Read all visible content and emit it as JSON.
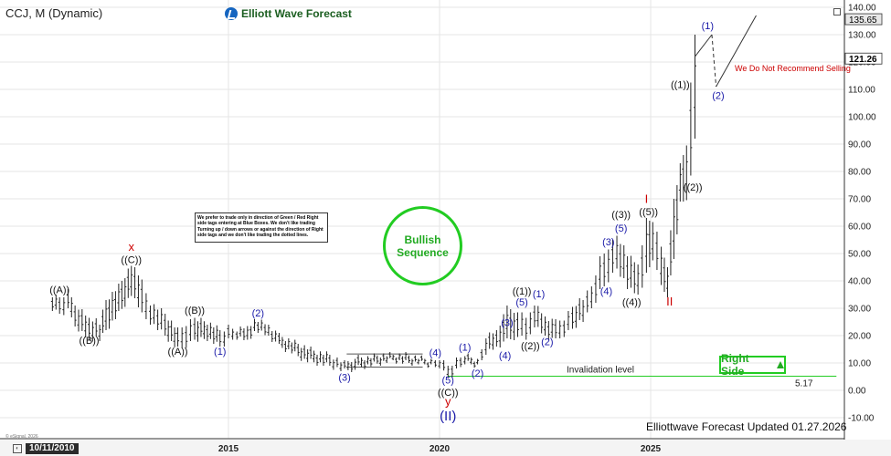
{
  "header": {
    "ticker": "CCJ, M (Dynamic)",
    "brand": "Elliott Wave Forecast"
  },
  "note": "We prefer to trade only in direction of Green / Red Right side tags entering at Blue Boxes. We don't like trading Turning up / down arrows or against the direction of Right side tags and we don't like trading the dotted lines.",
  "bullish_label": "Bullish Sequence",
  "right_side_label": "Right Side",
  "updated": "Elliottwave Forecast Updated 01.27.2026",
  "copyright": "© eSignal, 2026",
  "date_badge": "10/11/2010",
  "colors": {
    "green": "#22cc22",
    "blue": "#1a1aa8",
    "red": "#cc0000",
    "grid": "#e6e6e6",
    "bar": "#222222"
  },
  "chart_data": {
    "type": "ohlc",
    "x_ticks": [
      "2015",
      "2020",
      "2025"
    ],
    "y_ticks": [
      -10,
      0,
      10,
      20,
      30,
      40,
      50,
      60,
      70,
      80,
      90,
      100,
      110,
      120,
      130,
      140
    ],
    "ylim": [
      -13,
      142
    ],
    "price_labels": [
      "135.65",
      "121.26"
    ],
    "price_label_values": [
      135.65,
      121.26
    ],
    "bars": [
      [
        2010.83,
        30,
        35
      ],
      [
        2011.0,
        28,
        34
      ],
      [
        2011.2,
        29,
        36
      ],
      [
        2011.45,
        22,
        30
      ],
      [
        2011.7,
        18,
        26
      ],
      [
        2011.95,
        19,
        25
      ],
      [
        2012.1,
        22,
        33
      ],
      [
        2012.4,
        28,
        38
      ],
      [
        2012.7,
        35,
        46
      ],
      [
        2012.95,
        28,
        40
      ],
      [
        2013.15,
        25,
        32
      ],
      [
        2013.5,
        20,
        28
      ],
      [
        2013.8,
        15,
        22
      ],
      [
        2014.0,
        16,
        24
      ],
      [
        2014.2,
        18,
        26
      ],
      [
        2014.5,
        19,
        25
      ],
      [
        2014.8,
        16,
        22
      ],
      [
        2015.0,
        18,
        23
      ],
      [
        2015.2,
        19,
        22
      ],
      [
        2015.45,
        18,
        23
      ],
      [
        2015.7,
        22,
        26
      ],
      [
        2015.95,
        20,
        24
      ],
      [
        2016.2,
        16,
        20
      ],
      [
        2016.5,
        14,
        18
      ],
      [
        2016.8,
        11,
        16
      ],
      [
        2017.1,
        10,
        14
      ],
      [
        2017.4,
        9,
        13
      ],
      [
        2017.75,
        7,
        10
      ],
      [
        2018.0,
        8,
        12
      ],
      [
        2018.3,
        9,
        12
      ],
      [
        2018.6,
        10,
        13
      ],
      [
        2018.9,
        11,
        13
      ],
      [
        2019.2,
        10,
        13
      ],
      [
        2019.5,
        10,
        12
      ],
      [
        2019.8,
        9,
        11
      ],
      [
        2020.0,
        9,
        12
      ],
      [
        2020.2,
        4.5,
        9
      ],
      [
        2020.4,
        7,
        11
      ],
      [
        2020.6,
        10,
        13
      ],
      [
        2020.9,
        9,
        11
      ],
      [
        2021.1,
        14,
        20
      ],
      [
        2021.35,
        16,
        22
      ],
      [
        2021.6,
        18,
        30
      ],
      [
        2021.85,
        20,
        29
      ],
      [
        2022.05,
        18,
        26
      ],
      [
        2022.25,
        24,
        32
      ],
      [
        2022.5,
        20,
        27
      ],
      [
        2022.75,
        18,
        25
      ],
      [
        2022.95,
        20,
        26
      ],
      [
        2023.15,
        22,
        30
      ],
      [
        2023.4,
        26,
        34
      ],
      [
        2023.6,
        30,
        38
      ],
      [
        2023.8,
        36,
        48
      ],
      [
        2024.0,
        40,
        52
      ],
      [
        2024.2,
        44,
        56
      ],
      [
        2024.45,
        38,
        50
      ],
      [
        2024.7,
        35,
        46
      ],
      [
        2024.9,
        42,
        62
      ],
      [
        2025.05,
        48,
        62
      ],
      [
        2025.25,
        38,
        52
      ],
      [
        2025.4,
        35,
        46
      ],
      [
        2025.55,
        48,
        70
      ],
      [
        2025.7,
        68,
        82
      ],
      [
        2025.85,
        70,
        90
      ],
      [
        2025.95,
        78,
        112
      ],
      [
        2026.05,
        92,
        130
      ]
    ],
    "wave_labels": [
      {
        "text": "((A))",
        "x": 2011.0,
        "y": 35.5,
        "color": "#111111"
      },
      {
        "text": "((B))",
        "x": 2011.7,
        "y": 17,
        "color": "#111111"
      },
      {
        "text": "((C))",
        "x": 2012.7,
        "y": 46.5,
        "color": "#111111"
      },
      {
        "text": "x",
        "x": 2012.7,
        "y": 51,
        "color": "#cc0000"
      },
      {
        "text": "((A))",
        "x": 2013.8,
        "y": 13,
        "color": "#111111"
      },
      {
        "text": "((B))",
        "x": 2014.2,
        "y": 28,
        "color": "#111111"
      },
      {
        "text": "(1)",
        "x": 2014.8,
        "y": 13,
        "color": "#1a1aa8"
      },
      {
        "text": "(2)",
        "x": 2015.7,
        "y": 27,
        "color": "#1a1aa8"
      },
      {
        "text": "(3)",
        "x": 2017.75,
        "y": 3.5,
        "color": "#1a1aa8"
      },
      {
        "text": "(4)",
        "x": 2019.9,
        "y": 12.5,
        "color": "#1a1aa8"
      },
      {
        "text": "(5)",
        "x": 2020.2,
        "y": 2.5,
        "color": "#1a1aa8"
      },
      {
        "text": "((C))",
        "x": 2020.2,
        "y": -2,
        "color": "#111111"
      },
      {
        "text": "y",
        "x": 2020.2,
        "y": -5.5,
        "color": "#cc0000"
      },
      {
        "text": "(II)",
        "x": 2020.2,
        "y": -11,
        "color": "#1a1aa8"
      },
      {
        "text": "(1)",
        "x": 2020.6,
        "y": 14.5,
        "color": "#1a1aa8"
      },
      {
        "text": "(2)",
        "x": 2020.9,
        "y": 5,
        "color": "#1a1aa8"
      },
      {
        "text": "(3)",
        "x": 2021.6,
        "y": 23.5,
        "color": "#1a1aa8"
      },
      {
        "text": "(4)",
        "x": 2021.55,
        "y": 11.5,
        "color": "#1a1aa8"
      },
      {
        "text": "(5)",
        "x": 2021.95,
        "y": 31,
        "color": "#1a1aa8"
      },
      {
        "text": "((1))",
        "x": 2021.95,
        "y": 35,
        "color": "#111111"
      },
      {
        "text": "(1)",
        "x": 2022.35,
        "y": 34,
        "color": "#1a1aa8"
      },
      {
        "text": "((2))",
        "x": 2022.15,
        "y": 15,
        "color": "#111111"
      },
      {
        "text": "(2)",
        "x": 2022.55,
        "y": 16.5,
        "color": "#1a1aa8"
      },
      {
        "text": "(3)",
        "x": 2024.0,
        "y": 53,
        "color": "#1a1aa8"
      },
      {
        "text": "(4)",
        "x": 2023.95,
        "y": 35,
        "color": "#1a1aa8"
      },
      {
        "text": "((3))",
        "x": 2024.3,
        "y": 63,
        "color": "#111111"
      },
      {
        "text": "(5)",
        "x": 2024.3,
        "y": 58,
        "color": "#1a1aa8"
      },
      {
        "text": "((4))",
        "x": 2024.55,
        "y": 31,
        "color": "#111111"
      },
      {
        "text": "((5))",
        "x": 2024.95,
        "y": 64,
        "color": "#111111"
      },
      {
        "text": "I",
        "x": 2024.9,
        "y": 68.5,
        "color": "#cc0000"
      },
      {
        "text": "II",
        "x": 2025.45,
        "y": 31,
        "color": "#cc0000"
      },
      {
        "text": "((2))",
        "x": 2026.0,
        "y": 73,
        "color": "#111111"
      },
      {
        "text": "((1))",
        "x": 2025.7,
        "y": 110.5,
        "color": "#111111"
      },
      {
        "text": "(1)",
        "x": 2026.35,
        "y": 132,
        "color": "#1a1aa8"
      },
      {
        "text": "(2)",
        "x": 2026.6,
        "y": 106.5,
        "color": "#1a1aa8"
      }
    ],
    "projection": [
      [
        2026.05,
        122
      ],
      [
        2026.45,
        130
      ],
      [
        2026.55,
        111
      ],
      [
        2027.5,
        137
      ]
    ],
    "triangle": [
      [
        2017.8,
        8.5
      ],
      [
        2019.6,
        8.5
      ],
      [
        2017.8,
        13.3
      ],
      [
        2019.6,
        13.3
      ]
    ],
    "invalidation": {
      "label": "Invalidation level",
      "value": 5.17,
      "value_label": "5.17",
      "from": 2020.2,
      "to": 2029.4
    },
    "warning": "We Do Not Recommend Selling"
  }
}
